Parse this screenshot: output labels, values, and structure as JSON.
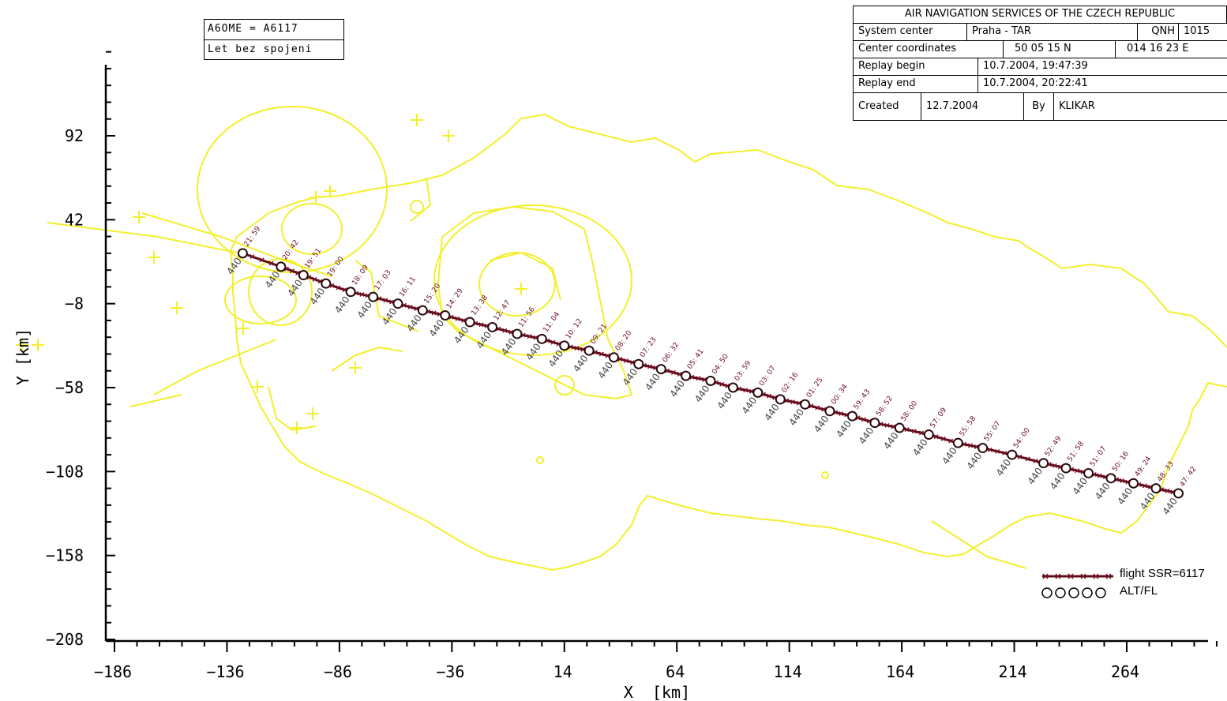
{
  "info_note": {
    "line1": "A6OME = A6117",
    "line2": "Let bez spojeni"
  },
  "header": {
    "title": "AIR NAVIGATION SERVICES OF THE CZECH REPUBLIC",
    "system_center_label": "System center",
    "system_center_value": "Praha - TAR",
    "qnh_label": "QNH",
    "qnh_value": "1015",
    "center_coordinates_label": "Center coordinates",
    "center_lat": "50 05 15 N",
    "center_lon": "014 16 23 E",
    "replay_begin_label": "Replay begin",
    "replay_begin_value": "10.7.2004, 19:47:39",
    "replay_end_label": "Replay end",
    "replay_end_value": "10.7.2004, 20:22:41",
    "created_label": "Created",
    "created_value": "12.7.2004",
    "by_label": "By",
    "by_value": "KLIKAR"
  },
  "legend": {
    "flight_label": "flight SSR=6117",
    "alt_label": "ALT/FL"
  },
  "colors": {
    "map": "#f2ef2c",
    "route": "#5a0d1c",
    "axis": "#000000"
  },
  "chart_data": {
    "type": "line",
    "xlabel": "X  [km]",
    "ylabel": "Y [km]",
    "xlim": [
      -186,
      314
    ],
    "ylim": [
      -208,
      142
    ],
    "xticks": [
      -186,
      -136,
      -86,
      -36,
      14,
      64,
      114,
      164,
      214,
      264
    ],
    "yticks": [
      92,
      42,
      -8,
      -58,
      -108,
      -158,
      -208
    ],
    "x_minor_step": 10,
    "y_minor_step": 10,
    "grid": false,
    "legend_position": "bottom-right",
    "series": [
      {
        "name": "flight SSR=6117",
        "altitude_label": "440",
        "points": [
          {
            "x": 287,
            "y": -121,
            "time": "47: 42"
          },
          {
            "x": 277,
            "y": -118,
            "time": "48: 33"
          },
          {
            "x": 267,
            "y": -115,
            "time": "49: 24"
          },
          {
            "x": 257,
            "y": -112,
            "time": "50: 16"
          },
          {
            "x": 247,
            "y": -109,
            "time": "51: 07"
          },
          {
            "x": 237,
            "y": -106,
            "time": "51: 58"
          },
          {
            "x": 227,
            "y": -103,
            "time": "52: 49"
          },
          {
            "x": 213,
            "y": -98,
            "time": "54: 00"
          },
          {
            "x": 200,
            "y": -94,
            "time": "55: 07"
          },
          {
            "x": 189,
            "y": -91,
            "time": "55: 58"
          },
          {
            "x": 176,
            "y": -86,
            "time": "57: 09"
          },
          {
            "x": 163,
            "y": -82,
            "time": "58: 00"
          },
          {
            "x": 152,
            "y": -79,
            "time": "58: 52"
          },
          {
            "x": 142,
            "y": -75,
            "time": "59: 43"
          },
          {
            "x": 132,
            "y": -72,
            "time": "00: 34"
          },
          {
            "x": 121,
            "y": -68,
            "time": "01: 25"
          },
          {
            "x": 110,
            "y": -65,
            "time": "02: 16"
          },
          {
            "x": 100,
            "y": -61,
            "time": "03: 07"
          },
          {
            "x": 89,
            "y": -58,
            "time": "03: 59"
          },
          {
            "x": 79,
            "y": -54,
            "time": "04: 50"
          },
          {
            "x": 68,
            "y": -51,
            "time": "05: 41"
          },
          {
            "x": 57,
            "y": -47,
            "time": "06: 32"
          },
          {
            "x": 47,
            "y": -44,
            "time": "07: 23"
          },
          {
            "x": 36,
            "y": -40,
            "time": "08: 20"
          },
          {
            "x": 25,
            "y": -36,
            "time": "09: 21"
          },
          {
            "x": 14,
            "y": -33,
            "time": "10: 12"
          },
          {
            "x": 4,
            "y": -29,
            "time": "11: 04"
          },
          {
            "x": -7,
            "y": -26,
            "time": "11: 56"
          },
          {
            "x": -18,
            "y": -22,
            "time": "12: 47"
          },
          {
            "x": -28,
            "y": -19,
            "time": "13: 38"
          },
          {
            "x": -39,
            "y": -15,
            "time": "14: 29"
          },
          {
            "x": -49,
            "y": -12,
            "time": "15: 20"
          },
          {
            "x": -60,
            "y": -8,
            "time": "16: 11"
          },
          {
            "x": -71,
            "y": -4,
            "time": "17: 03"
          },
          {
            "x": -81,
            "y": -1,
            "time": "18: 09"
          },
          {
            "x": -92,
            "y": 4,
            "time": "19: 00"
          },
          {
            "x": -102,
            "y": 9,
            "time": "19: 51"
          },
          {
            "x": -112,
            "y": 14,
            "time": "20: 42"
          },
          {
            "x": -129,
            "y": 22,
            "time": "21: 59"
          }
        ]
      }
    ]
  }
}
